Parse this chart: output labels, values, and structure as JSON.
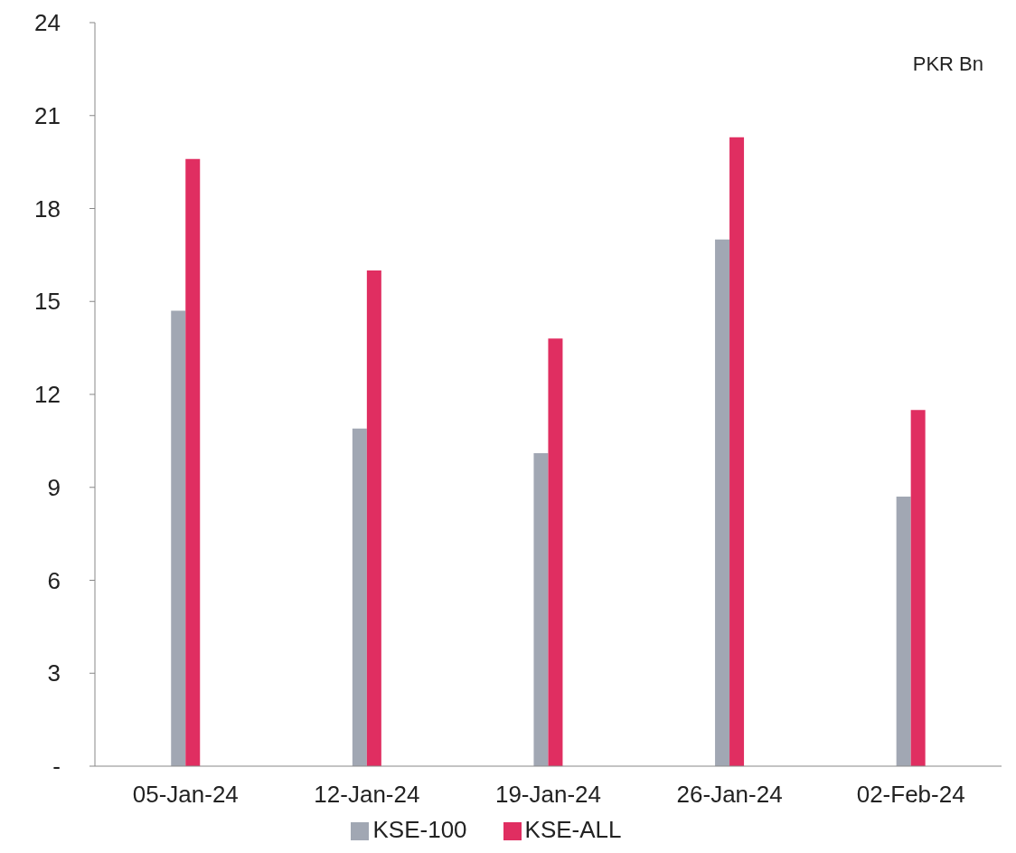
{
  "chart_data": {
    "type": "bar",
    "categories": [
      "05-Jan-24",
      "12-Jan-24",
      "19-Jan-24",
      "26-Jan-24",
      "02-Feb-24"
    ],
    "series": [
      {
        "name": "KSE-100",
        "color": "#a1a7b3",
        "values": [
          14.7,
          10.9,
          10.1,
          17.0,
          8.7
        ]
      },
      {
        "name": "KSE-ALL",
        "color": "#e02e61",
        "values": [
          19.6,
          16.0,
          13.8,
          20.3,
          11.5
        ]
      }
    ],
    "ylim": [
      0,
      24
    ],
    "yticks": [
      {
        "value": 0,
        "label": "-"
      },
      3,
      6,
      9,
      12,
      15,
      18,
      21,
      24
    ],
    "annotations": [
      "PKR Bn"
    ],
    "legend": "bottom",
    "grid": false
  }
}
